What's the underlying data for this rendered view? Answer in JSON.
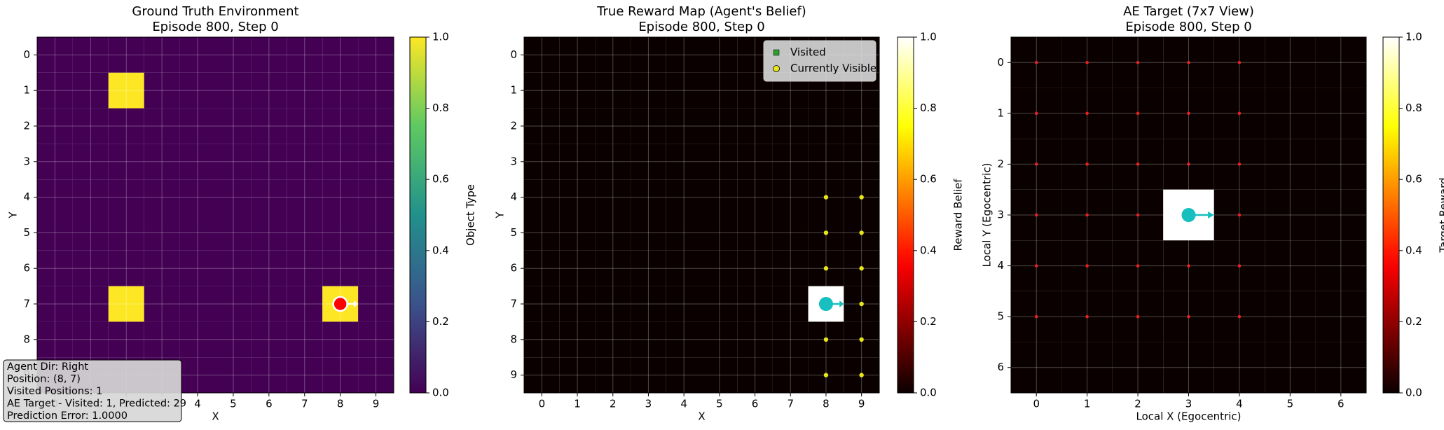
{
  "chart_data": [
    {
      "type": "heatmap",
      "title": "Ground Truth Environment",
      "subtitle": "Episode 800, Step 0",
      "x_label": "X",
      "y_label": "Y",
      "colorbar_label": "Object Type",
      "colormap": "viridis",
      "clim": [
        0,
        1
      ],
      "cticks": [
        {
          "value": 0,
          "label": "0.0"
        },
        {
          "value": 0.2,
          "label": "0.2"
        },
        {
          "value": 0.4,
          "label": "0.4"
        },
        {
          "value": 0.6,
          "label": "0.6"
        },
        {
          "value": 0.8,
          "label": "0.8"
        },
        {
          "value": 1,
          "label": "1.0"
        }
      ],
      "xlim": [
        -0.5,
        9.5
      ],
      "ylim": [
        9.5,
        -0.5
      ],
      "xticks": [
        0,
        1,
        2,
        3,
        4,
        5,
        6,
        7,
        8,
        9
      ],
      "yticks": [
        0,
        1,
        2,
        3,
        4,
        5,
        6,
        7,
        8,
        9
      ],
      "grid": true,
      "z": [
        [
          0,
          0,
          0,
          0,
          0,
          0,
          0,
          0,
          0,
          0
        ],
        [
          0,
          0,
          1,
          0,
          0,
          0,
          0,
          0,
          0,
          0
        ],
        [
          0,
          0,
          0,
          0,
          0,
          0,
          0,
          0,
          0,
          0
        ],
        [
          0,
          0,
          0,
          0,
          0,
          0,
          0,
          0,
          0,
          0
        ],
        [
          0,
          0,
          0,
          0,
          0,
          0,
          0,
          0,
          0,
          0
        ],
        [
          0,
          0,
          0,
          0,
          0,
          0,
          0,
          0,
          0,
          0
        ],
        [
          0,
          0,
          0,
          0,
          0,
          0,
          0,
          0,
          0,
          0
        ],
        [
          0,
          0,
          1,
          0,
          0,
          0,
          0,
          0,
          1,
          0
        ],
        [
          0,
          0,
          0,
          0,
          0,
          0,
          0,
          0,
          0,
          0
        ],
        [
          0,
          0,
          0,
          0,
          0,
          0,
          0,
          0,
          0,
          0
        ]
      ],
      "agent": {
        "x": 8,
        "y": 7,
        "color": "#ff0000"
      },
      "info_box": [
        "Agent Dir: Right",
        "Position: (8, 7)",
        "Visited Positions: 1",
        "AE Target - Visited: 1, Predicted: 29",
        "Prediction Error: 1.0000"
      ]
    },
    {
      "type": "heatmap",
      "title": "True Reward Map (Agent's Belief)",
      "subtitle": "Episode 800, Step 0",
      "x_label": "X",
      "y_label": "Y",
      "colorbar_label": "Reward Belief",
      "colormap": "hot",
      "clim": [
        0,
        1
      ],
      "cticks": [
        {
          "value": 0,
          "label": "0.0"
        },
        {
          "value": 0.2,
          "label": "0.2"
        },
        {
          "value": 0.4,
          "label": "0.4"
        },
        {
          "value": 0.6,
          "label": "0.6"
        },
        {
          "value": 0.8,
          "label": "0.8"
        },
        {
          "value": 1,
          "label": "1.0"
        }
      ],
      "xlim": [
        -0.5,
        9.5
      ],
      "ylim": [
        9.5,
        -0.5
      ],
      "xticks": [
        0,
        1,
        2,
        3,
        4,
        5,
        6,
        7,
        8,
        9
      ],
      "yticks": [
        0,
        1,
        2,
        3,
        4,
        5,
        6,
        7,
        8,
        9
      ],
      "grid": true,
      "z": [
        [
          0,
          0,
          0,
          0,
          0,
          0,
          0,
          0,
          0,
          0
        ],
        [
          0,
          0,
          0,
          0,
          0,
          0,
          0,
          0,
          0,
          0
        ],
        [
          0,
          0,
          0,
          0,
          0,
          0,
          0,
          0,
          0,
          0
        ],
        [
          0,
          0,
          0,
          0,
          0,
          0,
          0,
          0,
          0,
          0
        ],
        [
          0,
          0,
          0,
          0,
          0,
          0,
          0,
          0,
          0,
          0
        ],
        [
          0,
          0,
          0,
          0,
          0,
          0,
          0,
          0,
          0,
          0
        ],
        [
          0,
          0,
          0,
          0,
          0,
          0,
          0,
          0,
          0,
          0
        ],
        [
          0,
          0,
          0,
          0,
          0,
          0,
          0,
          0,
          1,
          0
        ],
        [
          0,
          0,
          0,
          0,
          0,
          0,
          0,
          0,
          0,
          0
        ],
        [
          0,
          0,
          0,
          0,
          0,
          0,
          0,
          0,
          0,
          0
        ]
      ],
      "overlays": [
        {
          "name": "Visited",
          "marker": "square",
          "color": "#2ca02c",
          "x": [
            8
          ],
          "y": [
            7
          ]
        },
        {
          "name": "Currently Visible",
          "marker": "circle",
          "color": "#e6e619",
          "x": [
            8,
            9,
            8,
            9,
            8,
            9,
            8,
            9,
            8,
            9,
            8,
            9
          ],
          "y": [
            4,
            4,
            5,
            5,
            6,
            6,
            7,
            7,
            8,
            8,
            9,
            9
          ]
        }
      ],
      "legend": "upper right",
      "agent": {
        "x": 8,
        "y": 7,
        "color": "#17bfbf"
      }
    },
    {
      "type": "heatmap",
      "title": "AE Target (7x7 View)",
      "subtitle": "Episode 800, Step 0",
      "x_label": "Local X (Egocentric)",
      "y_label": "Local Y (Egocentric)",
      "colorbar_label": "Target Reward",
      "colormap": "hot",
      "clim": [
        0,
        1
      ],
      "cticks": [
        {
          "value": 0,
          "label": "0.0"
        },
        {
          "value": 0.2,
          "label": "0.2"
        },
        {
          "value": 0.4,
          "label": "0.4"
        },
        {
          "value": 0.6,
          "label": "0.6"
        },
        {
          "value": 0.8,
          "label": "0.8"
        },
        {
          "value": 1,
          "label": "1.0"
        }
      ],
      "xlim": [
        -0.5,
        6.5
      ],
      "ylim": [
        6.5,
        -0.5
      ],
      "xticks": [
        0,
        1,
        2,
        3,
        4,
        5,
        6
      ],
      "yticks": [
        0,
        1,
        2,
        3,
        4,
        5,
        6
      ],
      "grid": true,
      "z": [
        [
          0,
          0,
          0,
          0,
          0,
          0,
          0
        ],
        [
          0,
          0,
          0,
          0,
          0,
          0,
          0
        ],
        [
          0,
          0,
          0,
          0,
          0,
          0,
          0
        ],
        [
          0,
          0,
          0,
          1,
          0,
          0,
          0
        ],
        [
          0,
          0,
          0,
          0,
          0,
          0,
          0
        ],
        [
          0,
          0,
          0,
          0,
          0,
          0,
          0
        ],
        [
          0,
          0,
          0,
          0,
          0,
          0,
          0
        ]
      ],
      "overlays": [
        {
          "marker": "circle-small",
          "color": "#e82020",
          "x": [
            0,
            1,
            2,
            3,
            4,
            0,
            1,
            2,
            3,
            4,
            0,
            1,
            2,
            3,
            4,
            0,
            1,
            2,
            3,
            4,
            0,
            1,
            2,
            3,
            4,
            0,
            1,
            2,
            3,
            4
          ],
          "y": [
            0,
            0,
            0,
            0,
            0,
            1,
            1,
            1,
            1,
            1,
            2,
            2,
            2,
            2,
            2,
            3,
            3,
            3,
            3,
            3,
            4,
            4,
            4,
            4,
            4,
            5,
            5,
            5,
            5,
            5
          ]
        }
      ],
      "agent": {
        "x": 3,
        "y": 3,
        "color": "#17bfbf"
      }
    }
  ]
}
